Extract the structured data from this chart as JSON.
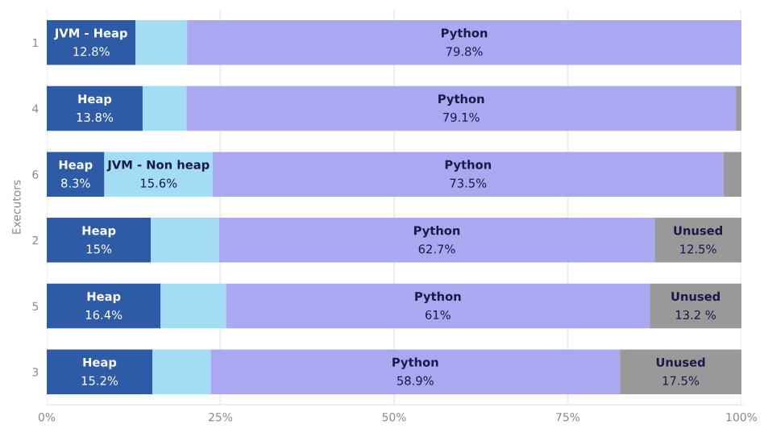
{
  "chart_data": {
    "type": "bar",
    "orientation": "horizontal",
    "stacked": true,
    "ylabel": "Executors",
    "categories": [
      "1",
      "4",
      "6",
      "2",
      "5",
      "3"
    ],
    "series": [
      {
        "color": "#2e5ba6",
        "values": [
          12.8,
          13.8,
          8.3,
          15,
          16.4,
          15.2
        ],
        "value_labels": [
          "JVM - Heap\n12.8%",
          "Heap\n13.8%",
          "Heap\n8.3%",
          "Heap\n15%",
          "Heap\n16.4%",
          "Heap\n15.2%"
        ]
      },
      {
        "color": "#a3dcf5",
        "values": [
          7.4,
          6.3,
          15.6,
          9.8,
          9.4,
          8.4
        ],
        "value_labels": [
          null,
          null,
          "JVM - Non heap\n15.6%",
          null,
          null,
          null
        ]
      },
      {
        "color": "#a9a8f0",
        "values": [
          79.8,
          79.1,
          73.5,
          62.7,
          61,
          58.9
        ],
        "value_labels": [
          "Python\n79.8%",
          "Python\n79.1%",
          "Python\n73.5%",
          "Python\n62.7%",
          "Python\n61%",
          "Python\n58.9%"
        ]
      },
      {
        "color": "#999999",
        "values": [
          null,
          0.8,
          2.6,
          12.5,
          13.2,
          17.5
        ],
        "value_labels": [
          null,
          null,
          null,
          "Unused\n12.5%",
          "Unused\n13.2 %",
          "Unused\n17.5%"
        ]
      }
    ],
    "xlim": [
      0,
      100
    ],
    "xticks": [
      {
        "value": 0,
        "label": "0%"
      },
      {
        "value": 25,
        "label": "25%"
      },
      {
        "value": 50,
        "label": "50%"
      },
      {
        "value": 75,
        "label": "75%"
      },
      {
        "value": 100,
        "label": "100%"
      }
    ],
    "grid": "x"
  }
}
